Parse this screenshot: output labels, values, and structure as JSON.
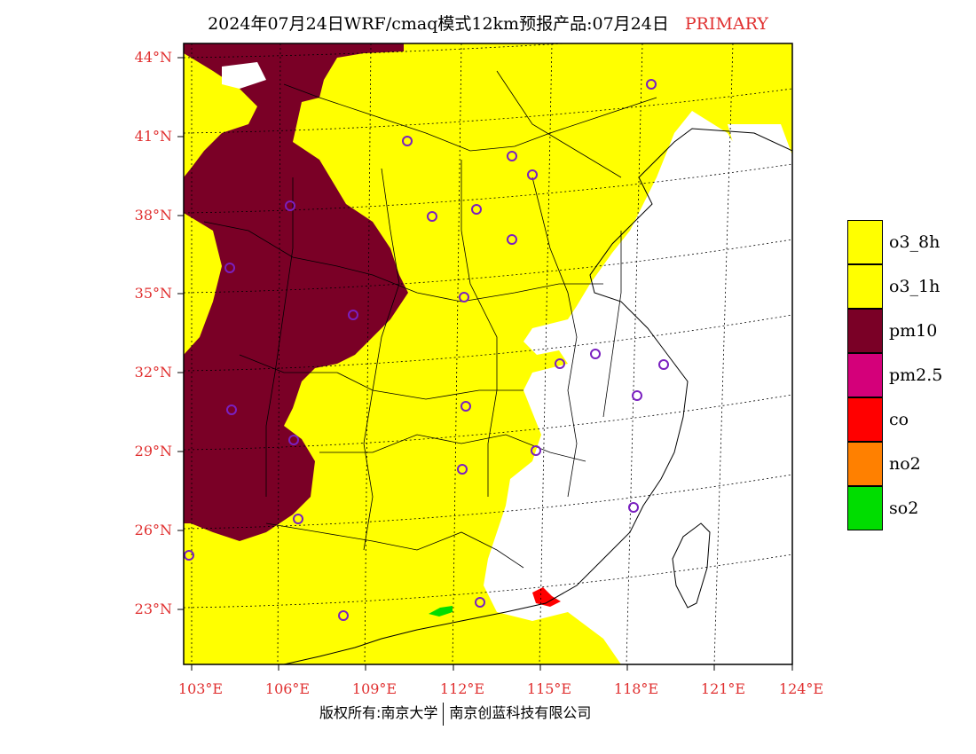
{
  "title": {
    "main": "2024年07月24日WRF/cmaq模式12km预报产品:07月24日",
    "status": "PRIMARY"
  },
  "axes": {
    "lat_ticks": [
      "44°N",
      "41°N",
      "38°N",
      "35°N",
      "32°N",
      "29°N",
      "26°N",
      "23°N"
    ],
    "lon_ticks": [
      "103°E",
      "106°E",
      "109°E",
      "112°E",
      "115°E",
      "118°E",
      "121°E",
      "124°E"
    ]
  },
  "legend": [
    {
      "label": "o3_8h",
      "color": "#ffff00"
    },
    {
      "label": "o3_1h",
      "color": "#ffff00"
    },
    {
      "label": "pm10",
      "color": "#7a0026"
    },
    {
      "label": "pm2.5",
      "color": "#d4007a"
    },
    {
      "label": "co",
      "color": "#ff0000"
    },
    {
      "label": "no2",
      "color": "#ff8000"
    },
    {
      "label": "so2",
      "color": "#00dd00"
    }
  ],
  "footer": {
    "left": "版权所有:南京大学",
    "right": "南京创蓝科技有限公司"
  }
}
